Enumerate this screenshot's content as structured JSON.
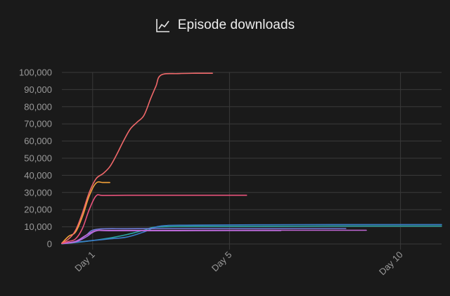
{
  "header": {
    "title": "Episode downloads",
    "icon": "line-chart-icon"
  },
  "chart_data": {
    "type": "line",
    "title": "Episode downloads",
    "xlabel": "",
    "ylabel": "",
    "ylim": [
      0,
      100000
    ],
    "xlim": [
      0.1,
      11.2
    ],
    "grid": true,
    "y_ticks": [
      0,
      10000,
      20000,
      30000,
      40000,
      50000,
      60000,
      70000,
      80000,
      90000,
      100000
    ],
    "y_tick_labels": [
      "0",
      "10,000",
      "20,000",
      "30,000",
      "40,000",
      "50,000",
      "60,000",
      "70,000",
      "80,000",
      "90,000",
      "100,000"
    ],
    "x_ticks": [
      1,
      5,
      10
    ],
    "x_tick_labels": [
      "Day 1",
      "Day 5",
      "Day 10"
    ],
    "series": [
      {
        "color": "#f0686a",
        "x": [
          0.1,
          0.3,
          0.5,
          0.7,
          0.9,
          1.1,
          1.3,
          1.5,
          1.7,
          1.9,
          2.1,
          2.3,
          2.5,
          2.7,
          2.85,
          3.0,
          3.5,
          4.0,
          4.5
        ],
        "y": [
          500,
          3000,
          8000,
          18000,
          30000,
          38000,
          41000,
          45000,
          52000,
          60000,
          67000,
          71000,
          75000,
          85000,
          92000,
          98500,
          99300,
          99500,
          99500
        ]
      },
      {
        "color": "#f6a23a",
        "x": [
          0.1,
          0.3,
          0.5,
          0.7,
          0.9,
          1.1,
          1.3,
          1.5
        ],
        "y": [
          500,
          4500,
          7000,
          16000,
          28000,
          35500,
          35800,
          35800
        ]
      },
      {
        "color": "#e9537c",
        "x": [
          0.1,
          0.3,
          0.5,
          0.7,
          0.9,
          1.1,
          1.3,
          2.0,
          3.0,
          4.0,
          5.0,
          5.5
        ],
        "y": [
          300,
          1500,
          3000,
          9000,
          20000,
          28000,
          28300,
          28400,
          28400,
          28400,
          28400,
          28400
        ]
      },
      {
        "color": "#c168d6",
        "x": [
          0.1,
          0.5,
          0.8,
          1.1,
          1.5,
          3.0,
          5.0,
          7.0,
          9.0
        ],
        "y": [
          300,
          1500,
          5000,
          7800,
          7900,
          7900,
          8000,
          8000,
          8000
        ]
      },
      {
        "color": "#a36ee0",
        "x": [
          0.1,
          0.5,
          0.8,
          1.1,
          1.5,
          3.0,
          5.0,
          6.5
        ],
        "y": [
          200,
          1200,
          4000,
          7600,
          7700,
          7700,
          7800,
          7800
        ]
      },
      {
        "color": "#6f7bd6",
        "x": [
          0.1,
          0.5,
          0.8,
          1.1,
          2.0,
          3.0,
          5.0,
          7.0,
          8.4
        ],
        "y": [
          300,
          1500,
          5000,
          8500,
          8900,
          9000,
          9000,
          9000,
          9000
        ]
      },
      {
        "color": "#3b7ec9",
        "x": [
          0.1,
          0.5,
          1.0,
          1.5,
          2.0,
          2.5,
          3.0,
          4.0,
          6.0,
          8.0,
          10.0,
          11.2
        ],
        "y": [
          200,
          1000,
          2000,
          3000,
          4000,
          7000,
          10500,
          11000,
          11200,
          11300,
          11300,
          11300
        ]
      },
      {
        "color": "#2aa6a1",
        "x": [
          0.1,
          0.5,
          1.0,
          1.5,
          2.0,
          2.5,
          3.0,
          5.0,
          8.0,
          11.2
        ],
        "y": [
          100,
          800,
          2000,
          3500,
          5500,
          8000,
          10000,
          10300,
          10400,
          10400
        ]
      }
    ]
  }
}
